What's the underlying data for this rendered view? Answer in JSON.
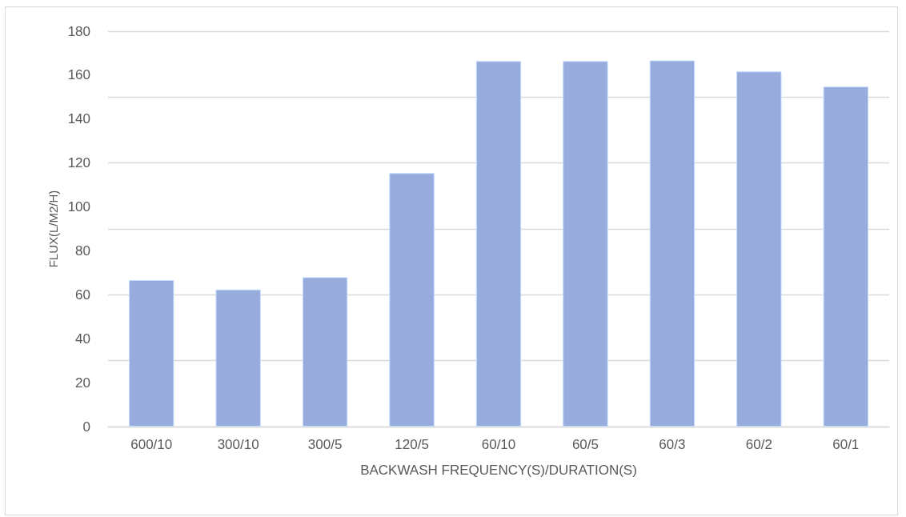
{
  "chart_data": {
    "type": "bar",
    "xlabel": "BACKWASH FREQUENCY(S)/DURATION(S)",
    "ylabel": "FLUX(L/M2/H)",
    "categories": [
      "600/10",
      "300/10",
      "300/5",
      "120/5",
      "60/10",
      "60/5",
      "60/3",
      "60/2",
      "60/1"
    ],
    "values": [
      66.7,
      62.4,
      68,
      115.4,
      166.4,
      166.4,
      166.7,
      161.7,
      154.8
    ],
    "color": "#97abdc",
    "ylim": [
      0,
      180
    ],
    "yticks": [
      0,
      20,
      40,
      60,
      80,
      100,
      120,
      140,
      160,
      180
    ],
    "grid": "y"
  }
}
